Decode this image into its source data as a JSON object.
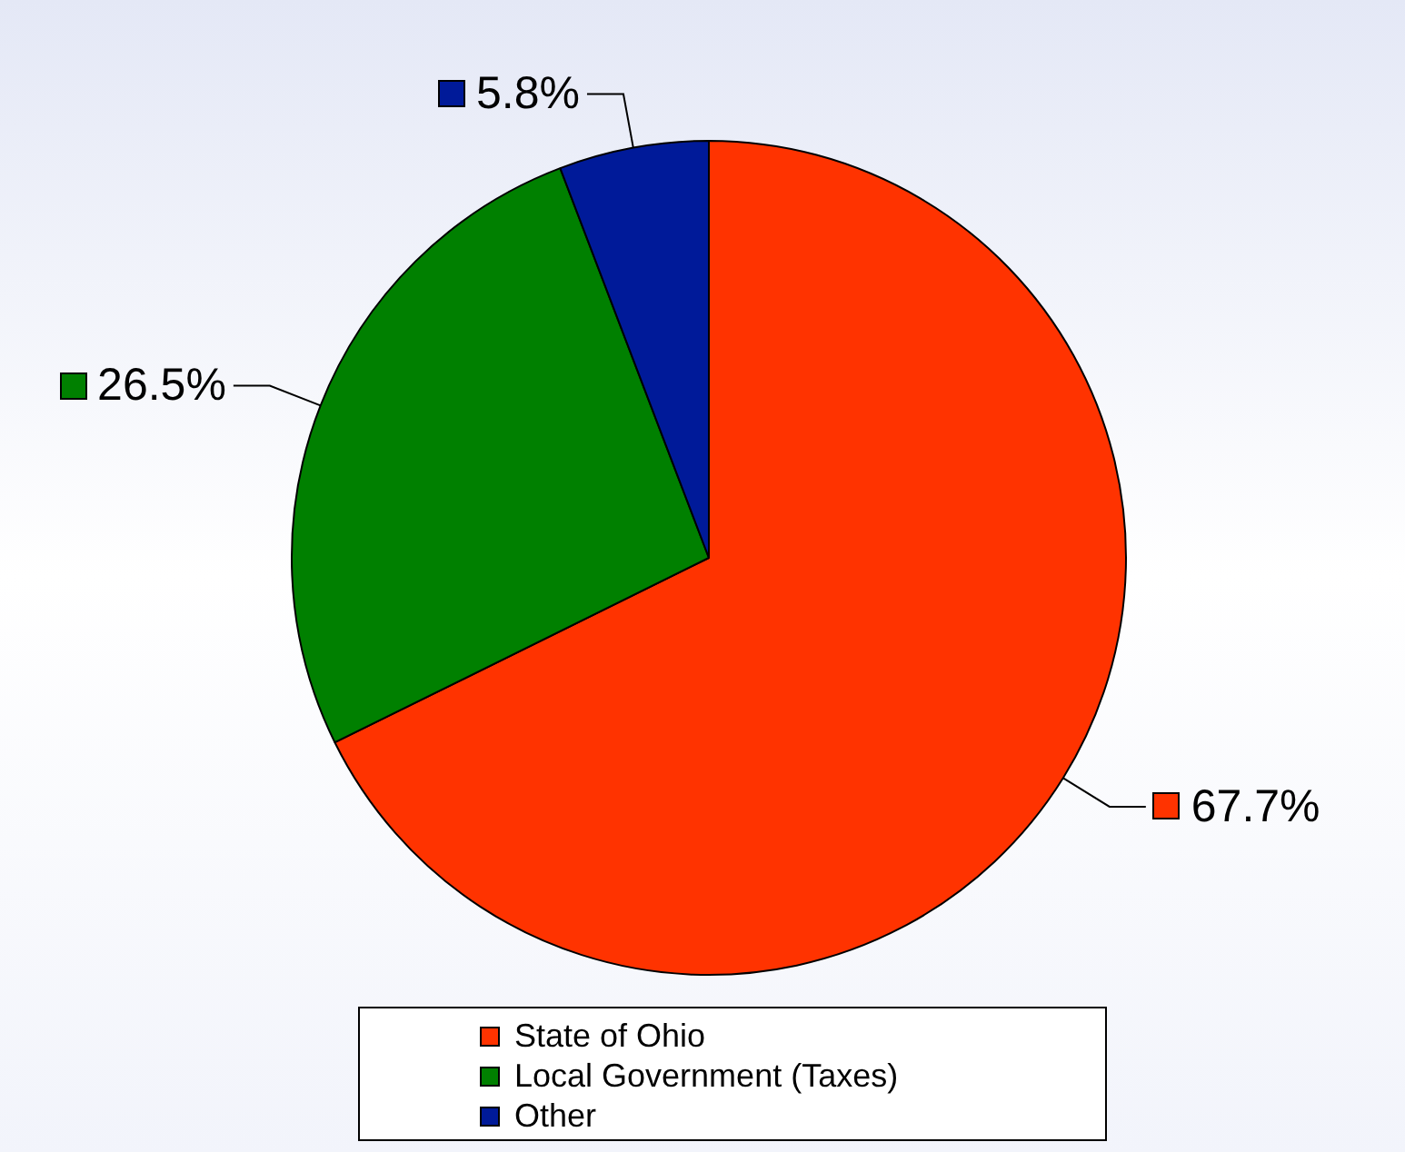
{
  "chart_data": {
    "type": "pie",
    "categories": [
      "State of Ohio",
      "Local Government (Taxes)",
      "Other"
    ],
    "values": [
      67.7,
      26.5,
      5.8
    ],
    "colors": [
      "#ff3300",
      "#008000",
      "#001a99"
    ],
    "value_labels": [
      "67.7%",
      "26.5%",
      "5.8%"
    ],
    "legend": "bottom"
  }
}
